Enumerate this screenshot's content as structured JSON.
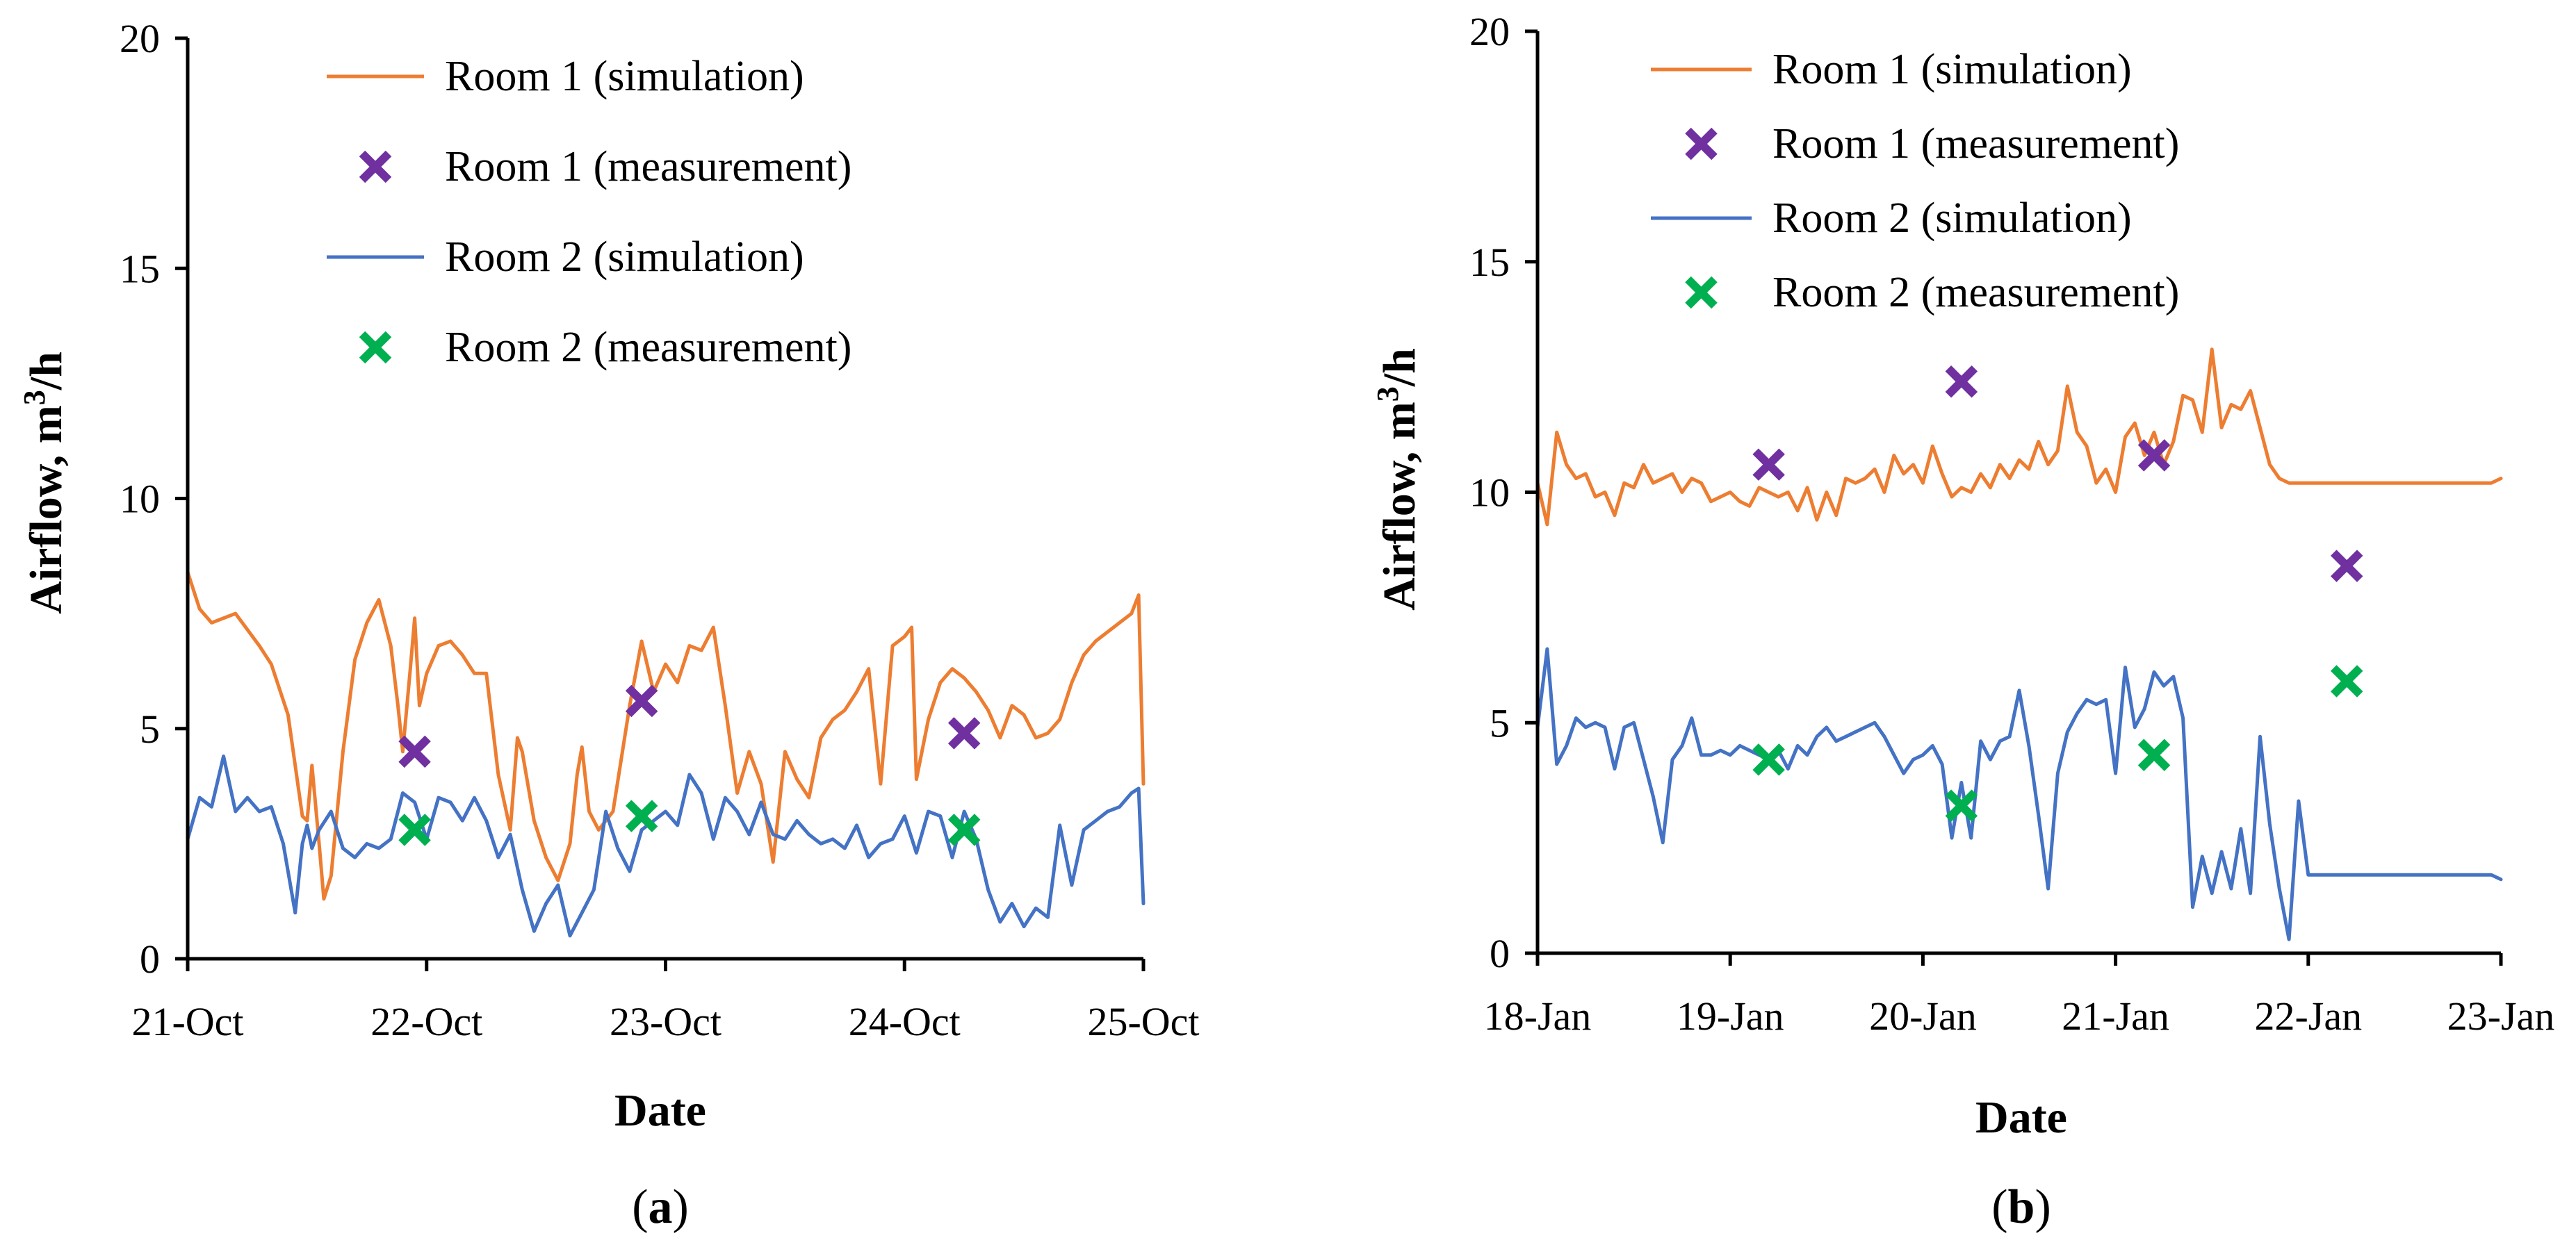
{
  "colors": {
    "room1_sim": "#ED7D31",
    "room1_meas": "#7030A0",
    "room2_sim": "#4472C4",
    "room2_meas": "#00B050",
    "axis": "#000000"
  },
  "chart_data": [
    {
      "type": "line",
      "caption": {
        "paren_open": "(",
        "letter": "a",
        "paren_close": ")"
      },
      "xlabel": "Date",
      "ylabel": {
        "main": "Airflow, m",
        "sup": "3",
        "tail": "/h"
      },
      "xlim": [
        0,
        4
      ],
      "ylim": [
        0,
        20
      ],
      "yticks": [
        0,
        5,
        10,
        15,
        20
      ],
      "xtick_labels": [
        "21-Oct",
        "22-Oct",
        "23-Oct",
        "24-Oct",
        "25-Oct"
      ],
      "legend_position": "top",
      "series": [
        {
          "name": "Room 1 (simulation)",
          "kind": "line",
          "color_key": "room1_sim",
          "x": [
            0,
            0.05,
            0.1,
            0.2,
            0.3,
            0.35,
            0.42,
            0.48,
            0.5,
            0.52,
            0.55,
            0.57,
            0.6,
            0.65,
            0.7,
            0.75,
            0.8,
            0.85,
            0.88,
            0.9,
            0.93,
            0.95,
            0.97,
            1.0,
            1.05,
            1.1,
            1.15,
            1.2,
            1.25,
            1.3,
            1.35,
            1.38,
            1.4,
            1.45,
            1.5,
            1.55,
            1.6,
            1.63,
            1.65,
            1.68,
            1.72,
            1.78,
            1.85,
            1.9,
            1.95,
            2.0,
            2.05,
            2.1,
            2.15,
            2.2,
            2.25,
            2.3,
            2.35,
            2.4,
            2.45,
            2.5,
            2.55,
            2.6,
            2.65,
            2.7,
            2.75,
            2.8,
            2.85,
            2.9,
            2.95,
            3.0,
            3.03,
            3.05,
            3.1,
            3.15,
            3.2,
            3.25,
            3.3,
            3.35,
            3.4,
            3.45,
            3.5,
            3.55,
            3.6,
            3.65,
            3.7,
            3.75,
            3.8,
            3.85,
            3.9,
            3.95,
            3.98,
            4.0
          ],
          "y": [
            8.4,
            7.6,
            7.3,
            7.5,
            6.8,
            6.4,
            5.3,
            3.1,
            3.0,
            4.2,
            2.5,
            1.3,
            1.8,
            4.5,
            6.5,
            7.3,
            7.8,
            6.8,
            5.5,
            4.5,
            6.2,
            7.4,
            5.5,
            6.2,
            6.8,
            6.9,
            6.6,
            6.2,
            6.2,
            4.0,
            2.8,
            4.8,
            4.5,
            3.0,
            2.2,
            1.7,
            2.5,
            4.0,
            4.6,
            3.2,
            2.8,
            3.2,
            5.5,
            6.9,
            5.8,
            6.4,
            6.0,
            6.8,
            6.7,
            7.2,
            5.5,
            3.6,
            4.5,
            3.8,
            2.1,
            4.5,
            3.9,
            3.5,
            4.8,
            5.2,
            5.4,
            5.8,
            6.3,
            3.8,
            6.8,
            7.0,
            7.2,
            3.9,
            5.2,
            6.0,
            6.3,
            6.1,
            5.8,
            5.4,
            4.8,
            5.5,
            5.3,
            4.8,
            4.9,
            5.2,
            6.0,
            6.6,
            6.9,
            7.1,
            7.3,
            7.5,
            7.9,
            3.8
          ]
        },
        {
          "name": "Room 1 (measurement)",
          "kind": "marker",
          "color_key": "room1_meas",
          "x": [
            0.95,
            1.9,
            3.25
          ],
          "y": [
            4.5,
            5.6,
            4.9
          ]
        },
        {
          "name": "Room 2 (simulation)",
          "kind": "line",
          "color_key": "room2_sim",
          "x": [
            0,
            0.05,
            0.1,
            0.15,
            0.2,
            0.25,
            0.3,
            0.35,
            0.4,
            0.45,
            0.48,
            0.5,
            0.52,
            0.55,
            0.6,
            0.65,
            0.7,
            0.75,
            0.8,
            0.85,
            0.9,
            0.95,
            1.0,
            1.05,
            1.1,
            1.15,
            1.2,
            1.25,
            1.3,
            1.35,
            1.4,
            1.45,
            1.5,
            1.55,
            1.6,
            1.65,
            1.7,
            1.75,
            1.8,
            1.85,
            1.9,
            1.95,
            2.0,
            2.05,
            2.1,
            2.15,
            2.2,
            2.25,
            2.3,
            2.35,
            2.4,
            2.45,
            2.5,
            2.55,
            2.6,
            2.65,
            2.7,
            2.75,
            2.8,
            2.85,
            2.9,
            2.95,
            3.0,
            3.05,
            3.1,
            3.15,
            3.2,
            3.25,
            3.3,
            3.35,
            3.4,
            3.45,
            3.5,
            3.55,
            3.6,
            3.65,
            3.7,
            3.75,
            3.8,
            3.85,
            3.9,
            3.95,
            3.98,
            4.0
          ],
          "y": [
            2.6,
            3.5,
            3.3,
            4.4,
            3.2,
            3.5,
            3.2,
            3.3,
            2.5,
            1.0,
            2.5,
            2.9,
            2.4,
            2.8,
            3.2,
            2.4,
            2.2,
            2.5,
            2.4,
            2.6,
            3.6,
            3.4,
            2.6,
            3.5,
            3.4,
            3.0,
            3.5,
            3.0,
            2.2,
            2.7,
            1.5,
            0.6,
            1.2,
            1.6,
            0.5,
            1.0,
            1.5,
            3.2,
            2.4,
            1.9,
            2.8,
            3.0,
            3.2,
            2.9,
            4.0,
            3.6,
            2.6,
            3.5,
            3.2,
            2.7,
            3.4,
            2.7,
            2.6,
            3.0,
            2.7,
            2.5,
            2.6,
            2.4,
            2.9,
            2.2,
            2.5,
            2.6,
            3.1,
            2.3,
            3.2,
            3.1,
            2.2,
            3.2,
            2.6,
            1.5,
            0.8,
            1.2,
            0.7,
            1.1,
            0.9,
            2.9,
            1.6,
            2.8,
            3.0,
            3.2,
            3.3,
            3.6,
            3.7,
            1.2
          ]
        },
        {
          "name": "Room 2 (measurement)",
          "kind": "marker",
          "color_key": "room2_meas",
          "x": [
            0.95,
            1.9,
            3.25
          ],
          "y": [
            2.8,
            3.1,
            2.8
          ]
        }
      ]
    },
    {
      "type": "line",
      "caption": {
        "paren_open": "(",
        "letter": "b",
        "paren_close": ")"
      },
      "xlabel": "Date",
      "ylabel": {
        "main": "Airflow, m",
        "sup": "3",
        "tail": "/h"
      },
      "xlim": [
        0,
        5
      ],
      "ylim": [
        0,
        20
      ],
      "yticks": [
        0,
        5,
        10,
        15,
        20
      ],
      "xtick_labels": [
        "18-Jan",
        "19-Jan",
        "20-Jan",
        "21-Jan",
        "22-Jan",
        "23-Jan"
      ],
      "legend_position": "top",
      "series": [
        {
          "name": "Room 1 (simulation)",
          "kind": "line",
          "color_key": "room1_sim",
          "x": [
            0,
            0.05,
            0.1,
            0.15,
            0.2,
            0.25,
            0.3,
            0.35,
            0.4,
            0.45,
            0.5,
            0.55,
            0.6,
            0.65,
            0.7,
            0.75,
            0.8,
            0.85,
            0.9,
            0.95,
            1.0,
            1.05,
            1.1,
            1.15,
            1.2,
            1.25,
            1.3,
            1.35,
            1.4,
            1.45,
            1.5,
            1.55,
            1.6,
            1.65,
            1.7,
            1.75,
            1.8,
            1.85,
            1.9,
            1.95,
            2.0,
            2.05,
            2.1,
            2.15,
            2.2,
            2.25,
            2.3,
            2.35,
            2.4,
            2.45,
            2.5,
            2.55,
            2.6,
            2.65,
            2.7,
            2.75,
            2.8,
            2.85,
            2.9,
            2.95,
            3.0,
            3.05,
            3.1,
            3.15,
            3.2,
            3.25,
            3.3,
            3.35,
            3.4,
            3.45,
            3.5,
            3.55,
            3.6,
            3.65,
            3.7,
            3.75,
            3.8,
            3.85,
            3.9,
            3.95,
            4.0,
            4.05,
            4.1,
            4.15,
            4.2,
            4.25,
            4.3,
            4.35,
            4.4,
            4.45,
            4.5,
            4.55,
            4.6,
            4.65,
            4.7,
            4.75,
            4.8,
            4.85,
            4.9,
            4.95,
            5.0
          ],
          "y": [
            10.2,
            9.3,
            11.3,
            10.6,
            10.3,
            10.4,
            9.9,
            10.0,
            9.5,
            10.2,
            10.1,
            10.6,
            10.2,
            10.3,
            10.4,
            10.0,
            10.3,
            10.2,
            9.8,
            9.9,
            10.0,
            9.8,
            9.7,
            10.1,
            10.0,
            9.9,
            10.0,
            9.6,
            10.1,
            9.4,
            10.0,
            9.5,
            10.3,
            10.2,
            10.3,
            10.5,
            10.0,
            10.8,
            10.4,
            10.6,
            10.2,
            11.0,
            10.4,
            9.9,
            10.1,
            10.0,
            10.4,
            10.1,
            10.6,
            10.3,
            10.7,
            10.5,
            11.1,
            10.6,
            10.9,
            12.3,
            11.3,
            11.0,
            10.2,
            10.5,
            10.0,
            11.2,
            11.5,
            10.8,
            11.3,
            10.6,
            11.1,
            12.1,
            12.0,
            11.3,
            13.1,
            11.4,
            11.9,
            11.8,
            12.2,
            11.4,
            10.6,
            10.3,
            10.2,
            10.2,
            10.2,
            10.2,
            10.2,
            10.2,
            10.2,
            10.2,
            10.2,
            10.2,
            10.2,
            10.2,
            10.2,
            10.2,
            10.2,
            10.2,
            10.2,
            10.2,
            10.2,
            10.2,
            10.2,
            10.2,
            10.3
          ]
        },
        {
          "name": "Room 1 (measurement)",
          "kind": "marker",
          "color_key": "room1_meas",
          "x": [
            1.2,
            2.2,
            3.2,
            4.2
          ],
          "y": [
            10.6,
            12.4,
            10.8,
            8.4
          ]
        },
        {
          "name": "Room 2 (simulation)",
          "kind": "line",
          "color_key": "room2_sim",
          "x": [
            0,
            0.05,
            0.1,
            0.15,
            0.2,
            0.25,
            0.3,
            0.35,
            0.4,
            0.45,
            0.5,
            0.55,
            0.6,
            0.65,
            0.7,
            0.75,
            0.8,
            0.85,
            0.9,
            0.95,
            1.0,
            1.05,
            1.1,
            1.15,
            1.2,
            1.25,
            1.3,
            1.35,
            1.4,
            1.45,
            1.5,
            1.55,
            1.6,
            1.65,
            1.7,
            1.75,
            1.8,
            1.85,
            1.9,
            1.95,
            2.0,
            2.05,
            2.1,
            2.15,
            2.2,
            2.25,
            2.3,
            2.35,
            2.4,
            2.45,
            2.5,
            2.55,
            2.6,
            2.65,
            2.7,
            2.75,
            2.8,
            2.85,
            2.9,
            2.95,
            3.0,
            3.05,
            3.1,
            3.15,
            3.2,
            3.25,
            3.3,
            3.35,
            3.4,
            3.45,
            3.5,
            3.55,
            3.6,
            3.65,
            3.7,
            3.75,
            3.8,
            3.85,
            3.9,
            3.95,
            4.0,
            4.05,
            4.1,
            4.15,
            4.2,
            4.25,
            4.3,
            4.35,
            4.4,
            4.45,
            4.5,
            4.55,
            4.6,
            4.65,
            4.7,
            4.75,
            4.8,
            4.85,
            4.9,
            4.95,
            5.0
          ],
          "y": [
            4.9,
            6.6,
            4.1,
            4.5,
            5.1,
            4.9,
            5.0,
            4.9,
            4.0,
            4.9,
            5.0,
            4.2,
            3.4,
            2.4,
            4.2,
            4.5,
            5.1,
            4.3,
            4.3,
            4.4,
            4.3,
            4.5,
            4.4,
            4.3,
            4.2,
            4.4,
            4.0,
            4.5,
            4.3,
            4.7,
            4.9,
            4.6,
            4.7,
            4.8,
            4.9,
            5.0,
            4.7,
            4.3,
            3.9,
            4.2,
            4.3,
            4.5,
            4.1,
            2.5,
            3.7,
            2.5,
            4.6,
            4.2,
            4.6,
            4.7,
            5.7,
            4.5,
            3.0,
            1.4,
            3.9,
            4.8,
            5.2,
            5.5,
            5.4,
            5.5,
            3.9,
            6.2,
            4.9,
            5.3,
            6.1,
            5.8,
            6.0,
            5.1,
            1.0,
            2.1,
            1.3,
            2.2,
            1.4,
            2.7,
            1.3,
            4.7,
            2.8,
            1.4,
            0.3,
            3.3,
            1.7,
            1.7,
            1.7,
            1.7,
            1.7,
            1.7,
            1.7,
            1.7,
            1.7,
            1.7,
            1.7,
            1.7,
            1.7,
            1.7,
            1.7,
            1.7,
            1.7,
            1.7,
            1.7,
            1.7,
            1.6
          ]
        },
        {
          "name": "Room 2 (measurement)",
          "kind": "marker",
          "color_key": "room2_meas",
          "x": [
            1.2,
            2.2,
            3.2,
            4.2
          ],
          "y": [
            4.2,
            3.2,
            4.3,
            5.9
          ]
        }
      ]
    }
  ]
}
